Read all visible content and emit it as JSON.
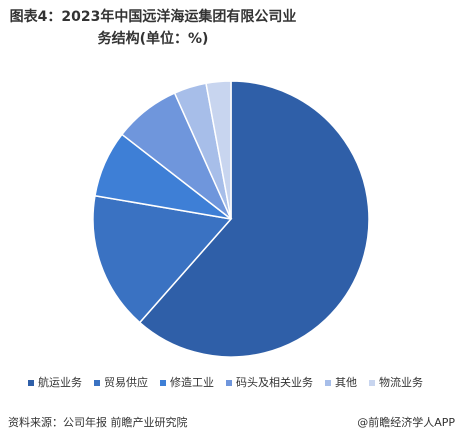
{
  "chart_data": {
    "type": "pie",
    "title": "图表4：2023年中国远洋海运集团有限公司业务结构(单位：%)",
    "categories": [
      "航运业务",
      "贸易供应",
      "修造工业",
      "码头及相关业务",
      "其他",
      "物流业务"
    ],
    "values": [
      61.5,
      16.2,
      7.8,
      7.8,
      3.8,
      2.9
    ],
    "colors": [
      "#2f5fa8",
      "#3a72c2",
      "#3e7fd6",
      "#6f96dc",
      "#a7bee9",
      "#c8d5ef"
    ],
    "legend": "bottom"
  },
  "footer": {
    "source": "资料来源：公司年报 前瞻产业研究院",
    "brand": "@前瞻经济学人APP"
  }
}
